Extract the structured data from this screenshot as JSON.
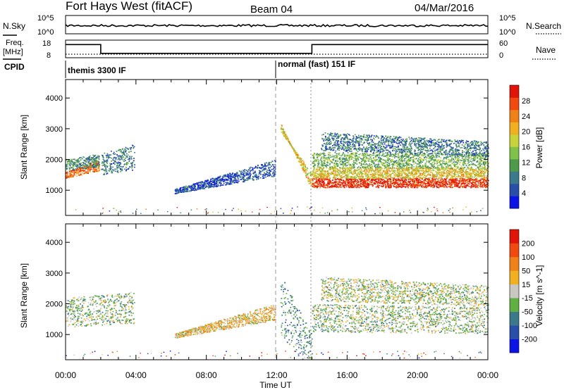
{
  "header": {
    "title": "Fort Hays West (fitACF)",
    "beam": "Beam 04",
    "date": "04/Mar/2016"
  },
  "time_axis": {
    "label": "Time UT",
    "ticks": [
      "00:00",
      "04:00",
      "08:00",
      "12:00",
      "16:00",
      "20:00",
      "00:00"
    ]
  },
  "noise_panel": {
    "left_label": "N.Sky",
    "left_ticks": [
      "10^5",
      "10^0"
    ],
    "right_label": "N.Search",
    "right_ticks": [
      "10^5",
      "10^0"
    ]
  },
  "freq_panel": {
    "left_label_line1": "Freq.",
    "left_label_line2": "[MHz]",
    "left_ticks": [
      "18",
      "8"
    ],
    "right_label": "Nave",
    "right_ticks": [
      "60",
      "0"
    ]
  },
  "cpid": {
    "label": "CPID",
    "segments": [
      {
        "label": "themis 3300 IF",
        "start_hour": 0
      },
      {
        "label": "normal (fast) 151 IF",
        "start_hour": 12
      }
    ]
  },
  "power_panel": {
    "ylabel": "Slant Range [km]",
    "yticks": [
      "1000",
      "2000",
      "3000",
      "4000"
    ],
    "colorbar_label": "Power [dB]",
    "colorbar_ticks": [
      "4",
      "8",
      "12",
      "16",
      "20",
      "24",
      "28"
    ],
    "colors": [
      "#0a14e6",
      "#2a4fa8",
      "#3a7a8a",
      "#4d9a4a",
      "#7fc24a",
      "#c8d23a",
      "#f0b020",
      "#f08018",
      "#f04a10",
      "#e01408"
    ]
  },
  "velocity_panel": {
    "ylabel": "Slant Range [km]",
    "yticks": [
      "1000",
      "2000",
      "3000",
      "4000"
    ],
    "colorbar_label": "Velocity [m s^-1]",
    "colorbar_ticks": [
      "200",
      "100",
      "50",
      "15",
      "-15",
      "-50",
      "-100",
      "-200"
    ],
    "colors": [
      "#0a14e6",
      "#2a4fa8",
      "#3a7a8a",
      "#5fb040",
      "#c8c8c0",
      "#f0b020",
      "#f08018",
      "#f04a10",
      "#e01408"
    ]
  },
  "chart_data": {
    "type": "heatmap",
    "x_range_hours": [
      0,
      24
    ],
    "y_range_km": [
      180,
      4600
    ],
    "power_bands": [
      {
        "t_start": 0.0,
        "t_end": 1.9,
        "r_start": 1400,
        "r_end": 1600,
        "r_end_end": 2000,
        "level": 0.8
      },
      {
        "t_start": 0.0,
        "t_end": 1.9,
        "r_start": 1650,
        "r_end": 2000,
        "r_end_end": 2200,
        "level": 0.3
      },
      {
        "t_start": 2.0,
        "t_end": 3.9,
        "r_start": 1500,
        "r_end": 2200,
        "r_end_end": 2500,
        "level": 0.25
      },
      {
        "t_start": 6.2,
        "t_end": 11.9,
        "r_start": 900,
        "r_end": 1050,
        "r_end_end": 2000,
        "level": 0.15
      },
      {
        "t_start": 12.2,
        "t_end": 14.0,
        "r_start": 2900,
        "r_end": 3200,
        "r_end_end": 1000,
        "level": 0.6
      },
      {
        "t_start": 14.0,
        "t_end": 24.0,
        "r_start": 1100,
        "r_end": 1400,
        "r_end_end": 1400,
        "level": 0.92
      },
      {
        "t_start": 14.0,
        "t_end": 24.0,
        "r_start": 1400,
        "r_end": 1750,
        "r_end_end": 1750,
        "level": 0.6
      },
      {
        "t_start": 14.0,
        "t_end": 24.0,
        "r_start": 1750,
        "r_end": 2250,
        "r_end_end": 2200,
        "level": 0.4
      },
      {
        "t_start": 14.5,
        "t_end": 24.0,
        "r_start": 2300,
        "r_end": 2900,
        "r_end_end": 2600,
        "level": 0.25
      }
    ],
    "velocity_bands": [
      {
        "t_start": 0.0,
        "t_end": 3.9,
        "r_start": 1250,
        "r_end": 2200,
        "r_end_end": 2400,
        "level": 0.44
      },
      {
        "t_start": 6.2,
        "t_end": 11.9,
        "r_start": 900,
        "r_end": 1050,
        "r_end_end": 2000,
        "level": 0.58
      },
      {
        "t_start": 12.2,
        "t_end": 14.0,
        "r_start": 1000,
        "r_end": 3000,
        "r_end_end": 1000,
        "level": 0.33
      },
      {
        "t_start": 14.0,
        "t_end": 24.0,
        "r_start": 1100,
        "r_end": 2000,
        "r_end_end": 1900,
        "level": 0.44
      },
      {
        "t_start": 14.5,
        "t_end": 24.0,
        "r_start": 2100,
        "r_end": 2900,
        "r_end_end": 2600,
        "level": 0.47
      }
    ],
    "frequency_segments": [
      {
        "t_start": 0,
        "t_end": 2.0,
        "mhz": 15.5
      },
      {
        "t_start": 2.0,
        "t_end": 14.0,
        "mhz": 10.5
      },
      {
        "t_start": 14.0,
        "t_end": 24.0,
        "mhz": 15.5
      }
    ],
    "nave_level": 12,
    "noise_level": 0.45
  }
}
